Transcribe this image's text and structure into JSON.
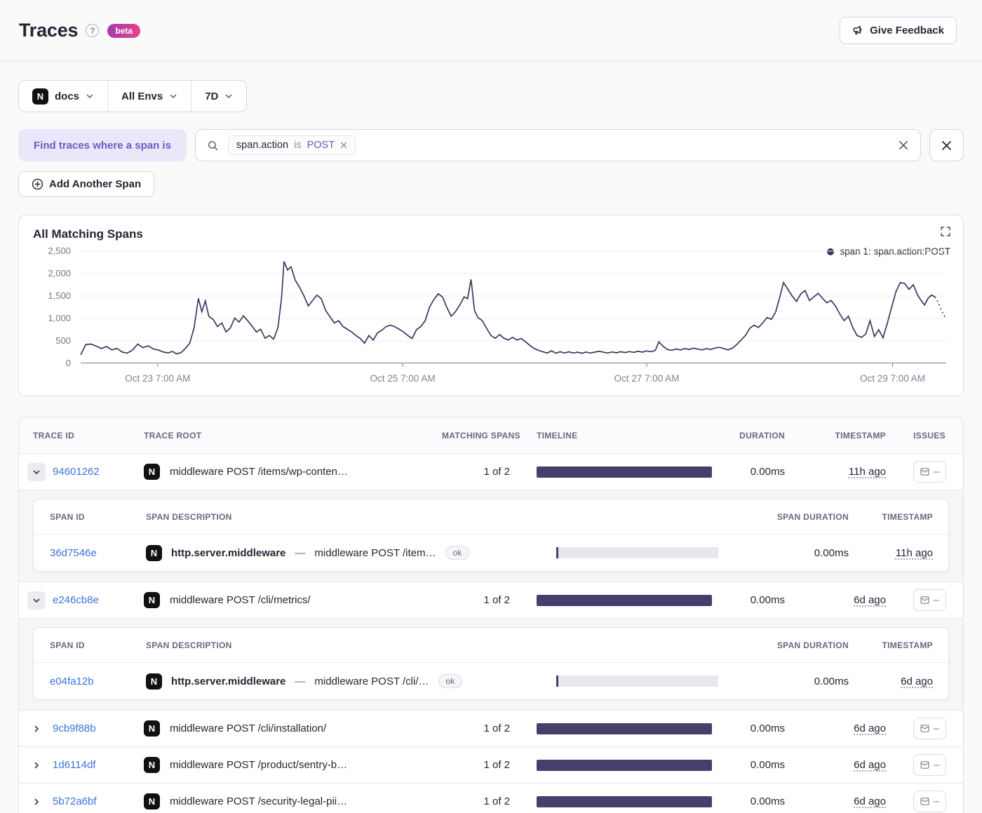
{
  "header": {
    "title": "Traces",
    "help": "?",
    "beta_label": "beta",
    "feedback_label": "Give Feedback"
  },
  "filters": {
    "project": "docs",
    "environment": "All Envs",
    "period": "7D"
  },
  "query": {
    "find_label": "Find traces where a span is",
    "chip": {
      "key": "span.action",
      "op": "is",
      "value": "POST"
    },
    "add_span_label": "Add Another Span"
  },
  "chart": {
    "title": "All Matching Spans",
    "legend": "span 1: span.action:POST"
  },
  "chart_data": {
    "type": "line",
    "title": "All Matching Spans",
    "xlabel": "",
    "ylabel": "",
    "ylim": [
      0,
      2500
    ],
    "grid": true,
    "legend_position": "top-right",
    "y_ticks": [
      {
        "value": 0,
        "label": "0"
      },
      {
        "value": 500,
        "label": "500"
      },
      {
        "value": 1000,
        "label": "1,000"
      },
      {
        "value": 1500,
        "label": "1,500"
      },
      {
        "value": 2000,
        "label": "2,000"
      },
      {
        "value": 2500,
        "label": "2,500"
      }
    ],
    "x_ticks": [
      {
        "t": 8.9,
        "label": "Oct 23 7:00 AM"
      },
      {
        "t": 37.2,
        "label": "Oct 25 7:00 AM"
      },
      {
        "t": 65.4,
        "label": "Oct 27 7:00 AM"
      },
      {
        "t": 93.8,
        "label": "Oct 29 7:00 AM"
      }
    ],
    "dotted_tail_points": 4,
    "series": [
      {
        "name": "span 1: span.action:POST",
        "color": "#3b355f",
        "points": [
          [
            0,
            190
          ],
          [
            0.6,
            420
          ],
          [
            1.2,
            430
          ],
          [
            1.8,
            385
          ],
          [
            2.4,
            330
          ],
          [
            3,
            375
          ],
          [
            3.6,
            300
          ],
          [
            4.2,
            335
          ],
          [
            4.8,
            250
          ],
          [
            5.4,
            230
          ],
          [
            6,
            300
          ],
          [
            6.6,
            430
          ],
          [
            7.2,
            350
          ],
          [
            7.8,
            390
          ],
          [
            8.4,
            320
          ],
          [
            9,
            295
          ],
          [
            9.6,
            250
          ],
          [
            10.1,
            235
          ],
          [
            10.6,
            265
          ],
          [
            11.1,
            210
          ],
          [
            11.6,
            240
          ],
          [
            12.1,
            335
          ],
          [
            12.6,
            445
          ],
          [
            13.1,
            790
          ],
          [
            13.6,
            1450
          ],
          [
            14,
            1150
          ],
          [
            14.4,
            1390
          ],
          [
            14.8,
            1050
          ],
          [
            15.3,
            980
          ],
          [
            15.8,
            820
          ],
          [
            16.3,
            900
          ],
          [
            16.8,
            700
          ],
          [
            17.3,
            790
          ],
          [
            17.8,
            1010
          ],
          [
            18.3,
            920
          ],
          [
            18.8,
            1060
          ],
          [
            19.3,
            950
          ],
          [
            19.8,
            830
          ],
          [
            20.3,
            700
          ],
          [
            20.8,
            760
          ],
          [
            21.3,
            560
          ],
          [
            21.8,
            620
          ],
          [
            22.3,
            540
          ],
          [
            22.8,
            800
          ],
          [
            23.2,
            1450
          ],
          [
            23.5,
            2270
          ],
          [
            23.9,
            2080
          ],
          [
            24.3,
            2150
          ],
          [
            24.8,
            1850
          ],
          [
            25.3,
            1690
          ],
          [
            25.8,
            1500
          ],
          [
            26.3,
            1280
          ],
          [
            26.8,
            1400
          ],
          [
            27.3,
            1520
          ],
          [
            27.8,
            1440
          ],
          [
            28.3,
            1180
          ],
          [
            28.8,
            1040
          ],
          [
            29.3,
            900
          ],
          [
            29.8,
            950
          ],
          [
            30.3,
            820
          ],
          [
            30.8,
            760
          ],
          [
            31.3,
            700
          ],
          [
            31.8,
            620
          ],
          [
            32.3,
            555
          ],
          [
            32.8,
            450
          ],
          [
            33.3,
            620
          ],
          [
            33.8,
            520
          ],
          [
            34.3,
            680
          ],
          [
            34.8,
            740
          ],
          [
            35.3,
            820
          ],
          [
            35.8,
            850
          ],
          [
            36.3,
            815
          ],
          [
            36.8,
            760
          ],
          [
            37.3,
            700
          ],
          [
            37.8,
            620
          ],
          [
            38.3,
            555
          ],
          [
            38.8,
            750
          ],
          [
            39.3,
            820
          ],
          [
            39.8,
            950
          ],
          [
            40.3,
            1250
          ],
          [
            40.8,
            1420
          ],
          [
            41.3,
            1550
          ],
          [
            41.8,
            1480
          ],
          [
            42.3,
            1250
          ],
          [
            42.8,
            1050
          ],
          [
            43.3,
            1150
          ],
          [
            43.8,
            1300
          ],
          [
            44.3,
            1480
          ],
          [
            44.7,
            1440
          ],
          [
            45.1,
            1870
          ],
          [
            45.5,
            1180
          ],
          [
            45.9,
            1020
          ],
          [
            46.4,
            950
          ],
          [
            46.9,
            780
          ],
          [
            47.4,
            620
          ],
          [
            47.9,
            560
          ],
          [
            48.4,
            640
          ],
          [
            48.9,
            560
          ],
          [
            49.4,
            520
          ],
          [
            49.9,
            580
          ],
          [
            50.4,
            520
          ],
          [
            50.9,
            555
          ],
          [
            51.4,
            480
          ],
          [
            51.9,
            400
          ],
          [
            52.4,
            330
          ],
          [
            52.9,
            290
          ],
          [
            53.4,
            260
          ],
          [
            53.9,
            230
          ],
          [
            54.4,
            280
          ],
          [
            54.9,
            225
          ],
          [
            55.4,
            260
          ],
          [
            55.9,
            230
          ],
          [
            56.4,
            258
          ],
          [
            56.9,
            230
          ],
          [
            57.4,
            250
          ],
          [
            57.9,
            225
          ],
          [
            58.4,
            252
          ],
          [
            58.9,
            230
          ],
          [
            59.4,
            250
          ],
          [
            59.9,
            268
          ],
          [
            60.4,
            248
          ],
          [
            60.9,
            230
          ],
          [
            61.4,
            255
          ],
          [
            61.9,
            235
          ],
          [
            62.4,
            260
          ],
          [
            62.9,
            240
          ],
          [
            63.4,
            262
          ],
          [
            63.9,
            245
          ],
          [
            64.4,
            268
          ],
          [
            64.9,
            250
          ],
          [
            65.4,
            278
          ],
          [
            65.9,
            260
          ],
          [
            66.4,
            290
          ],
          [
            66.8,
            480
          ],
          [
            67.3,
            380
          ],
          [
            67.8,
            310
          ],
          [
            68.3,
            290
          ],
          [
            68.8,
            320
          ],
          [
            69.3,
            300
          ],
          [
            69.8,
            330
          ],
          [
            70.3,
            310
          ],
          [
            70.8,
            338
          ],
          [
            71.3,
            318
          ],
          [
            71.8,
            300
          ],
          [
            72.3,
            330
          ],
          [
            72.8,
            310
          ],
          [
            73.3,
            340
          ],
          [
            73.8,
            358
          ],
          [
            74.3,
            330
          ],
          [
            74.8,
            300
          ],
          [
            75.3,
            340
          ],
          [
            75.8,
            420
          ],
          [
            76.3,
            520
          ],
          [
            76.8,
            620
          ],
          [
            77.3,
            780
          ],
          [
            77.8,
            850
          ],
          [
            78.3,
            800
          ],
          [
            78.8,
            900
          ],
          [
            79.3,
            1020
          ],
          [
            79.8,
            980
          ],
          [
            80.3,
            1150
          ],
          [
            80.8,
            1500
          ],
          [
            81.2,
            1800
          ],
          [
            81.7,
            1650
          ],
          [
            82.2,
            1500
          ],
          [
            82.7,
            1380
          ],
          [
            83.2,
            1550
          ],
          [
            83.7,
            1620
          ],
          [
            84.2,
            1400
          ],
          [
            84.7,
            1480
          ],
          [
            85.2,
            1560
          ],
          [
            85.7,
            1450
          ],
          [
            86.2,
            1350
          ],
          [
            86.7,
            1400
          ],
          [
            87.2,
            1280
          ],
          [
            87.7,
            1100
          ],
          [
            88.2,
            950
          ],
          [
            88.7,
            1050
          ],
          [
            89.2,
            800
          ],
          [
            89.7,
            620
          ],
          [
            90.2,
            580
          ],
          [
            90.7,
            650
          ],
          [
            91.2,
            950
          ],
          [
            91.7,
            600
          ],
          [
            92.2,
            750
          ],
          [
            92.7,
            570
          ],
          [
            93.2,
            900
          ],
          [
            93.7,
            1250
          ],
          [
            94.2,
            1600
          ],
          [
            94.7,
            1800
          ],
          [
            95.2,
            1780
          ],
          [
            95.7,
            1650
          ],
          [
            96.2,
            1750
          ],
          [
            96.7,
            1520
          ],
          [
            97.1,
            1400
          ],
          [
            97.5,
            1300
          ],
          [
            97.9,
            1450
          ],
          [
            98.3,
            1520
          ],
          [
            98.7,
            1480
          ],
          [
            99.1,
            1350
          ],
          [
            99.4,
            1200
          ],
          [
            99.7,
            1080
          ],
          [
            100,
            1000
          ]
        ]
      }
    ]
  },
  "table": {
    "headers": {
      "trace_id": "TRACE ID",
      "trace_root": "TRACE ROOT",
      "matching_spans": "MATCHING SPANS",
      "timeline": "TIMELINE",
      "duration": "DURATION",
      "timestamp": "TIMESTAMP",
      "issues": "ISSUES"
    },
    "span_headers": {
      "span_id": "SPAN ID",
      "span_description": "SPAN DESCRIPTION",
      "span_duration": "SPAN DURATION",
      "timestamp": "TIMESTAMP"
    },
    "issues_empty": "–",
    "rows": [
      {
        "id": "94601262",
        "expanded": true,
        "root": "middleware POST /items/wp-conten…",
        "matching": "1 of 2",
        "duration": "0.00ms",
        "timestamp": "11h ago",
        "spans": [
          {
            "id": "36d7546e",
            "op": "http.server.middleware",
            "dash": "—",
            "description": "middleware POST /item…",
            "status": "ok",
            "duration": "0.00ms",
            "timestamp": "11h ago"
          }
        ]
      },
      {
        "id": "e246cb8e",
        "expanded": true,
        "root": "middleware POST /cli/metrics/",
        "matching": "1 of 2",
        "duration": "0.00ms",
        "timestamp": "6d ago",
        "spans": [
          {
            "id": "e04fa12b",
            "op": "http.server.middleware",
            "dash": "—",
            "description": "middleware POST /cli/…",
            "status": "ok",
            "duration": "0.00ms",
            "timestamp": "6d ago"
          }
        ]
      },
      {
        "id": "9cb9f88b",
        "expanded": false,
        "root": "middleware POST /cli/installation/",
        "matching": "1 of 2",
        "duration": "0.00ms",
        "timestamp": "6d ago",
        "spans": []
      },
      {
        "id": "1d6114df",
        "expanded": false,
        "root": "middleware POST /product/sentry-b…",
        "matching": "1 of 2",
        "duration": "0.00ms",
        "timestamp": "6d ago",
        "spans": []
      },
      {
        "id": "5b72a6bf",
        "expanded": false,
        "root": "middleware POST /security-legal-pii…",
        "matching": "1 of 2",
        "duration": "0.00ms",
        "timestamp": "6d ago",
        "spans": []
      }
    ]
  }
}
